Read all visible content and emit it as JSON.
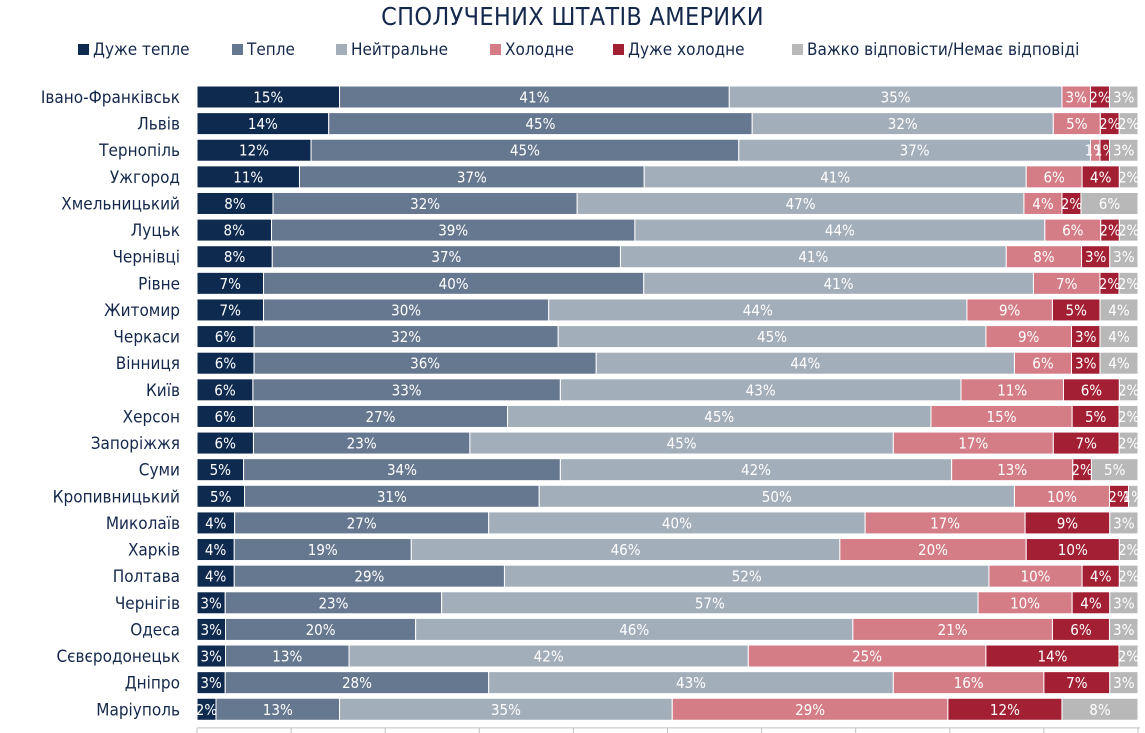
{
  "chart_data": {
    "type": "bar",
    "orientation": "horizontal",
    "stacked": true,
    "title": "СПОЛУЧЕНИХ ШТАТІВ АМЕРИКИ",
    "legend_position": "top",
    "xlim": [
      0,
      100
    ],
    "categories": [
      "Івано-Франківськ",
      "Львів",
      "Тернопіль",
      "Ужгород",
      "Хмельницький",
      "Луцьк",
      "Чернівці",
      "Рівне",
      "Житомир",
      "Черкаси",
      "Вінниця",
      "Київ",
      "Херсон",
      "Запоріжжя",
      "Суми",
      "Кропивницький",
      "Миколаїв",
      "Харків",
      "Полтава",
      "Чернігів",
      "Одеса",
      "Сєвєродонецьк",
      "Дніпро",
      "Маріуполь"
    ],
    "series": [
      {
        "name": "Дуже тепле",
        "color": "#0f2a4f",
        "label_color": "#ffffff",
        "values": [
          15,
          14,
          12,
          11,
          8,
          8,
          8,
          7,
          7,
          6,
          6,
          6,
          6,
          6,
          5,
          5,
          4,
          4,
          4,
          3,
          3,
          3,
          3,
          2
        ]
      },
      {
        "name": "Тепле",
        "color": "#66788f",
        "label_color": "#ffffff",
        "values": [
          41,
          45,
          45,
          37,
          32,
          39,
          37,
          40,
          30,
          32,
          36,
          33,
          27,
          23,
          34,
          31,
          27,
          19,
          29,
          23,
          20,
          13,
          28,
          13
        ]
      },
      {
        "name": "Нейтральне",
        "color": "#a3aebb",
        "label_color": "#ffffff",
        "values": [
          35,
          32,
          37,
          41,
          47,
          44,
          41,
          41,
          44,
          45,
          44,
          43,
          45,
          45,
          42,
          50,
          40,
          46,
          52,
          57,
          46,
          42,
          43,
          35
        ]
      },
      {
        "name": "Холодне",
        "color": "#d47d86",
        "label_color": "#ffffff",
        "values": [
          3,
          5,
          1,
          6,
          4,
          6,
          8,
          7,
          9,
          9,
          6,
          11,
          15,
          17,
          13,
          10,
          17,
          20,
          10,
          10,
          21,
          25,
          16,
          29
        ]
      },
      {
        "name": "Дуже холодне",
        "color": "#a31f34",
        "label_color": "#ffffff",
        "values": [
          2,
          2,
          1,
          4,
          2,
          2,
          3,
          2,
          5,
          3,
          3,
          6,
          5,
          7,
          2,
          2,
          9,
          10,
          4,
          4,
          6,
          14,
          7,
          12
        ]
      },
      {
        "name": "Важко відповісти/Немає відповіді",
        "color": "#b8b8b8",
        "label_color": "#ffffff",
        "values": [
          3,
          2,
          3,
          2,
          6,
          2,
          3,
          2,
          4,
          4,
          4,
          2,
          2,
          2,
          5,
          1,
          3,
          2,
          2,
          3,
          3,
          2,
          3,
          8
        ]
      }
    ],
    "label_suffix": "%",
    "axis_color": "#bfbfbf"
  }
}
